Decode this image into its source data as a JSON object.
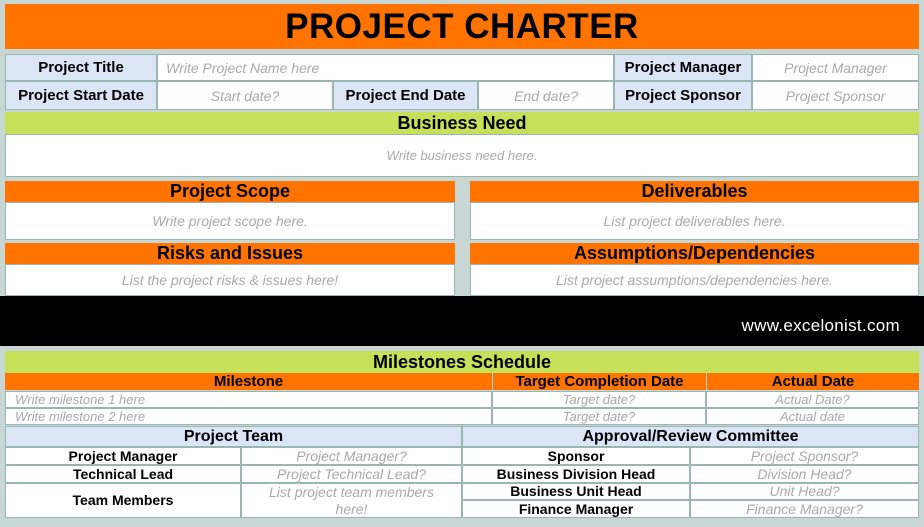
{
  "title": "PROJECT CHARTER",
  "info": {
    "project_title_label": "Project Title",
    "project_title_value": "Write Project Name here",
    "project_manager_label": "Project Manager",
    "project_manager_value": "Project Manager",
    "start_date_label": "Project Start Date",
    "start_date_value": "Start date?",
    "end_date_label": "Project End Date",
    "end_date_value": "End date?",
    "sponsor_label": "Project Sponsor",
    "sponsor_value": "Project Sponsor"
  },
  "business_need": {
    "heading": "Business Need",
    "placeholder": "Write business need here."
  },
  "scope": {
    "heading": "Project Scope",
    "placeholder": "Write project scope here."
  },
  "deliverables": {
    "heading": "Deliverables",
    "placeholder": "List project deliverables here."
  },
  "risks": {
    "heading": "Risks and Issues",
    "placeholder": "List the project risks & issues here!"
  },
  "assumptions": {
    "heading": "Assumptions/Dependencies",
    "placeholder": "List project assumptions/dependencies here."
  },
  "banner": {
    "text": "www.excelonist.com"
  },
  "milestones": {
    "heading": "Milestones Schedule",
    "columns": [
      "Milestone",
      "Target Completion Date",
      "Actual Date"
    ],
    "rows": [
      [
        "Write milestone 1 here",
        "Target date?",
        "Actual Date?"
      ],
      [
        "Write milestone 2 here",
        "Target date?",
        "Actual date"
      ]
    ]
  },
  "team": {
    "heading": "Project Team",
    "rows": [
      [
        "Project Manager",
        "Project Manager?"
      ],
      [
        "Technical Lead",
        "Project Technical Lead?"
      ],
      [
        "Team Members",
        "List project team members here!"
      ]
    ]
  },
  "committee": {
    "heading": "Approval/Review Committee",
    "rows": [
      [
        "Sponsor",
        "Project Sponsor?"
      ],
      [
        "Business Division Head",
        "Division Head?"
      ],
      [
        "Business Unit Head",
        "Unit Head?"
      ],
      [
        "Finance Manager",
        "Finance Manager?"
      ]
    ]
  },
  "colors": {
    "orange": "#ff7300",
    "green": "#c5e15a",
    "label_bg": "#dce5f6",
    "placeholder": "#a9a9a9",
    "banner_bg": "#000000"
  }
}
